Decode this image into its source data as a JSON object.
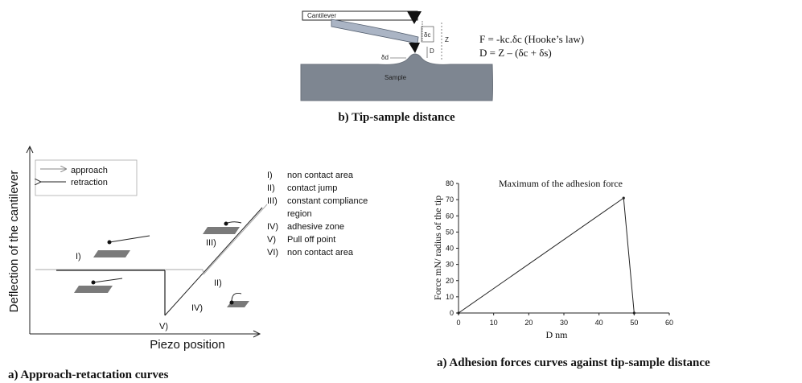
{
  "panel_b": {
    "cantilever_label": "Cantilever",
    "delta_c": "δc",
    "z_label": "Z",
    "d_label": "D",
    "delta_d": "δd",
    "sample_label": "Sample",
    "eq1": "F = -kc.δc  (Hooke’s law)",
    "eq2": "D = Z – (δc + δs)",
    "caption": "b) Tip-sample distance"
  },
  "panel_a_left": {
    "ylabel": "Deflection of the cantilever",
    "xlabel": "Piezo position",
    "legend": {
      "approach": "approach",
      "retraction": "retraction"
    },
    "regions": [
      "I)",
      "II)",
      "III)",
      "IV)",
      "V)"
    ],
    "key": [
      {
        "num": "I)",
        "text": "non contact area"
      },
      {
        "num": "II)",
        "text": "contact jump"
      },
      {
        "num": "III)",
        "text": "constant compliance"
      },
      {
        "num": "",
        "text": "region"
      },
      {
        "num": "IV)",
        "text": "adhesive zone"
      },
      {
        "num": "V)",
        "text": "Pull off point"
      },
      {
        "num": "VI)",
        "text": "non contact area"
      }
    ],
    "caption": "a) Approach-retactation curves"
  },
  "panel_a_right": {
    "caption": "a) Adhesion forces curves against tip-sample distance"
  },
  "chart_data": {
    "type": "line",
    "title": "Maximum  of the adhesion force",
    "xlabel": "D nm",
    "ylabel": "Force mN/ radius of the tip",
    "xlim": [
      0,
      60
    ],
    "ylim": [
      0,
      80
    ],
    "xticks": [
      0,
      10,
      20,
      30,
      40,
      50,
      60
    ],
    "yticks": [
      0,
      10,
      20,
      30,
      40,
      50,
      60,
      70,
      80
    ],
    "grid": false,
    "series": [
      {
        "x": [
          0,
          47,
          50
        ],
        "y": [
          0,
          71,
          0
        ]
      }
    ]
  }
}
